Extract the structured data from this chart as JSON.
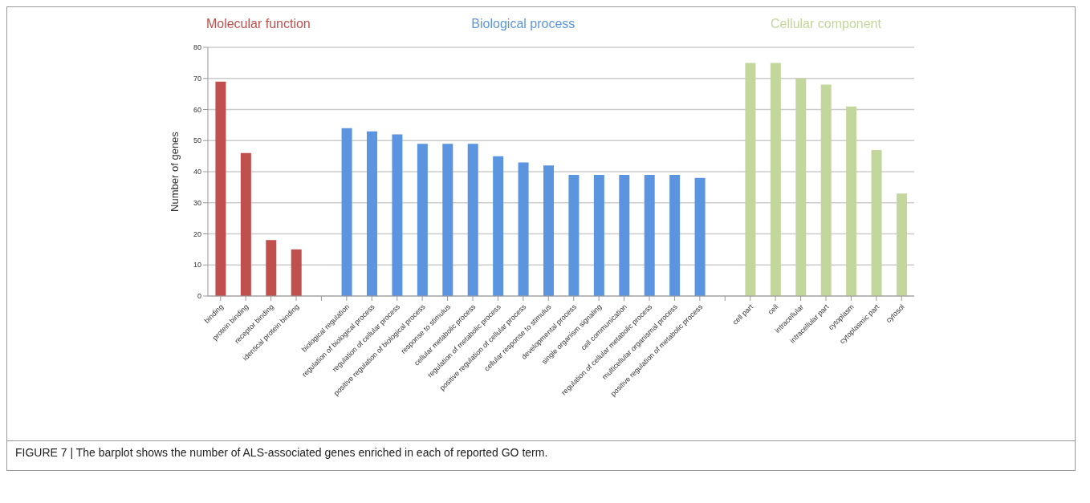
{
  "chart_data": {
    "type": "bar",
    "ylabel": "Number of genes",
    "categories": [
      "binding",
      "protein binding",
      "receptor binding",
      "identical protein binding",
      null,
      "biological regulation",
      "regulation of biological process",
      "regulation of cellular process",
      "positive regulation of biological process",
      "response to stimulus",
      "cellular metabolic process",
      "regulation of metabolic process",
      "positive regulation of cellular process",
      "cellular response to stimulus",
      "developmental process",
      "single organism signaling",
      "cell communication",
      "regulation of cellular metabolic process",
      "multicellular organismal process",
      "positive regulation of metabolic process",
      null,
      "cell part",
      "cell",
      "intracellular",
      "intracellular part",
      "cytoplasm",
      "cytoplasmic part",
      "cytosol"
    ],
    "series": [
      {
        "name": "Molecular function",
        "color": "#c0504d",
        "values": [
          69,
          46,
          18,
          15,
          null,
          null,
          null,
          null,
          null,
          null,
          null,
          null,
          null,
          null,
          null,
          null,
          null,
          null,
          null,
          null,
          null,
          null,
          null,
          null,
          null,
          null,
          null,
          null
        ]
      },
      {
        "name": "Biological process",
        "color": "#5b95e0",
        "values": [
          null,
          null,
          null,
          null,
          null,
          54,
          53,
          52,
          49,
          49,
          49,
          45,
          43,
          42,
          39,
          39,
          39,
          39,
          39,
          38,
          null,
          null,
          null,
          null,
          null,
          null,
          null,
          null
        ]
      },
      {
        "name": "Cellular component",
        "color": "#c3d69b",
        "values": [
          null,
          null,
          null,
          null,
          null,
          null,
          null,
          null,
          null,
          null,
          null,
          null,
          null,
          null,
          null,
          null,
          null,
          null,
          null,
          null,
          null,
          75,
          75,
          70,
          68,
          61,
          47,
          33
        ]
      }
    ],
    "ylim": [
      0,
      80
    ],
    "yticks": [
      0,
      10,
      20,
      30,
      40,
      50,
      60,
      70,
      80
    ],
    "grid": "y",
    "legend": false,
    "annotations": [
      "FIGURE 7 | The barplot shows the number of ALS-associated genes enriched in each of reported GO term."
    ]
  }
}
